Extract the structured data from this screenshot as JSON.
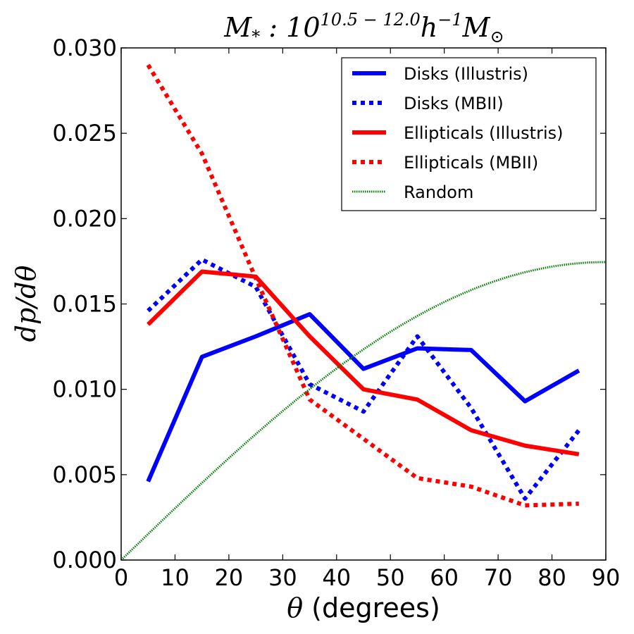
{
  "chart_data": {
    "type": "line",
    "title": {
      "prefix": "M",
      "prefix_sub": "*",
      "mid": " : 10",
      "exponent": "10.5 − 12.0",
      "suffix": "h",
      "suffix_sup": "−1",
      "tail": "M",
      "tail_sub": "⊙"
    },
    "xlabel": {
      "symbol": "θ",
      "text": " (degrees)"
    },
    "ylabel": "dp/dθ",
    "xlim": [
      0,
      90
    ],
    "ylim": [
      0,
      0.03
    ],
    "xticks": [
      0,
      10,
      20,
      30,
      40,
      50,
      60,
      70,
      80,
      90
    ],
    "xtick_labels": [
      "0",
      "10",
      "20",
      "30",
      "40",
      "50",
      "60",
      "70",
      "80",
      "90"
    ],
    "yticks": [
      0,
      0.005,
      0.01,
      0.015,
      0.02,
      0.025,
      0.03
    ],
    "ytick_labels": [
      "0.000",
      "0.005",
      "0.010",
      "0.015",
      "0.020",
      "0.025",
      "0.030"
    ],
    "legend_position": "top-right",
    "grid": false,
    "series": [
      {
        "name": "Disks (Illustris)",
        "color": "#0000ff",
        "style": "solid",
        "x": [
          5,
          15,
          25,
          35,
          45,
          55,
          65,
          75,
          85
        ],
        "values": [
          0.0046,
          0.0119,
          0.0131,
          0.0144,
          0.0112,
          0.0124,
          0.0123,
          0.0093,
          0.0111
        ]
      },
      {
        "name": "Disks (MBII)",
        "color": "#0000ff",
        "style": "dotted",
        "x": [
          5,
          15,
          25,
          35,
          45,
          55,
          65,
          75,
          85
        ],
        "values": [
          0.0146,
          0.0176,
          0.016,
          0.0103,
          0.0087,
          0.0131,
          0.0089,
          0.0036,
          0.0076
        ]
      },
      {
        "name": "Ellipticals (Illustris)",
        "color": "#ff0000",
        "style": "solid",
        "x": [
          5,
          15,
          25,
          35,
          45,
          55,
          65,
          75,
          85
        ],
        "values": [
          0.0138,
          0.0169,
          0.0166,
          0.0131,
          0.01,
          0.0094,
          0.0076,
          0.0067,
          0.0062
        ]
      },
      {
        "name": "Ellipticals (MBII)",
        "color": "#ff0000",
        "style": "dotted",
        "x": [
          5,
          15,
          25,
          35,
          45,
          55,
          65,
          75,
          85
        ],
        "values": [
          0.029,
          0.0238,
          0.0165,
          0.0094,
          0.0071,
          0.0048,
          0.0043,
          0.0032,
          0.0033
        ]
      },
      {
        "name": "Random",
        "color": "#008000",
        "style": "fine-dotted",
        "function": "sin(theta) * pi / 180",
        "x_range": [
          0,
          90
        ]
      }
    ]
  }
}
